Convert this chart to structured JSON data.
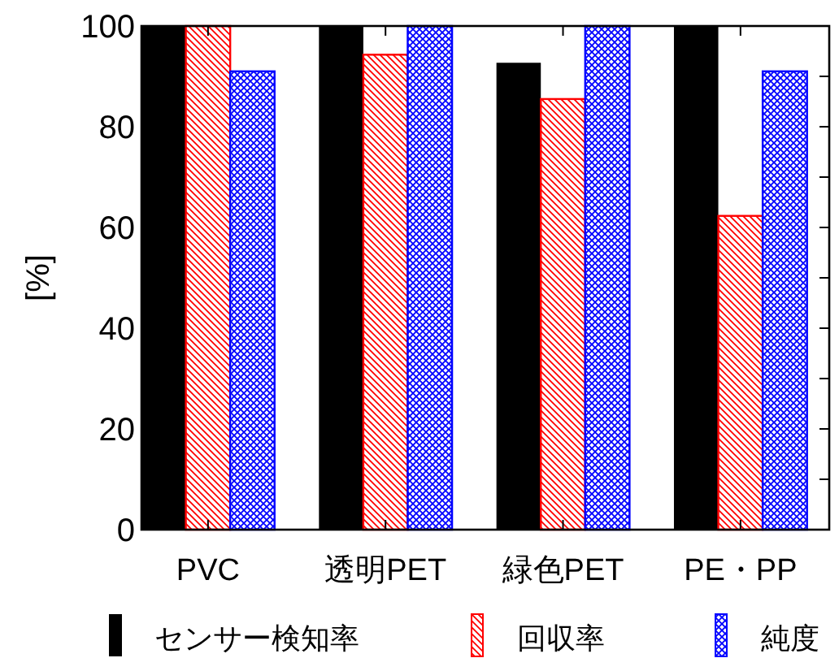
{
  "chart_data": {
    "type": "bar",
    "ylabel": "[%]",
    "categories": [
      "PVC",
      "透明PET",
      "緑色PET",
      "PE・PP"
    ],
    "series": [
      {
        "name": "センサー検知率",
        "color": "#000000",
        "values": [
          100,
          100,
          92.7,
          100
        ]
      },
      {
        "name": "回収率",
        "color": "#ff0000",
        "values": [
          100,
          94.3,
          85.5,
          62.3
        ]
      },
      {
        "name": "純度",
        "color": "#0000ff",
        "values": [
          91,
          100,
          100,
          91
        ]
      }
    ],
    "ylim": [
      0,
      100
    ],
    "yticks": [
      0,
      {
        "value": 10,
        "label": null
      },
      20,
      {
        "value": 30,
        "label": null
      },
      40,
      {
        "value": 50,
        "label": null
      },
      60,
      {
        "value": 70,
        "label": null
      },
      80,
      {
        "value": 90,
        "label": null
      },
      100
    ],
    "grid": false,
    "legend": "bottom"
  }
}
